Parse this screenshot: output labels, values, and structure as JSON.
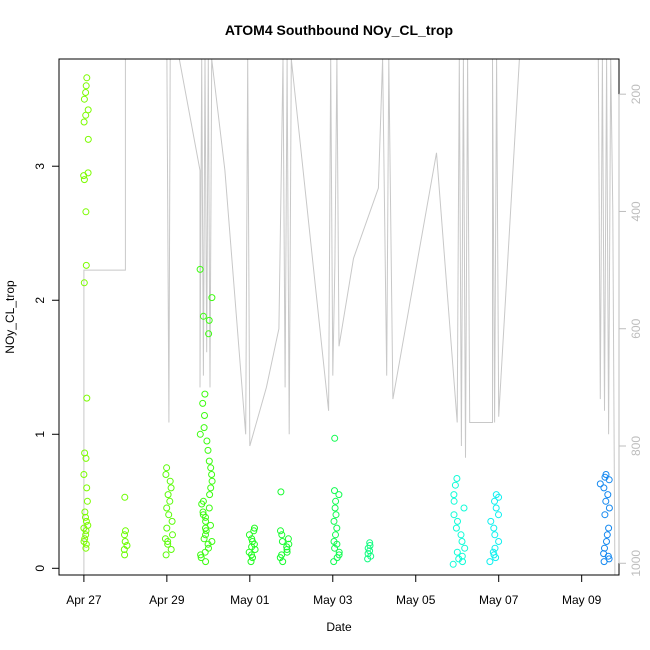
{
  "chart_data": {
    "type": "scatter",
    "title": "ATOM4 Southbound NOy_CL_trop",
    "xlabel": "Date",
    "ylabel": "NOy_CL_trop",
    "x_tick_labels": [
      "Apr 27",
      "Apr 29",
      "May 01",
      "May 03",
      "May 05",
      "May 07",
      "May 09"
    ],
    "x_tick_days": [
      0,
      2,
      4,
      6,
      8,
      10,
      12
    ],
    "xlim_days": [
      -0.6,
      12.9
    ],
    "y_ticks": [
      0,
      1,
      2,
      3
    ],
    "ylim": [
      -0.05,
      3.8
    ],
    "right_axis": {
      "ticks": [
        200,
        400,
        600,
        800,
        1000
      ],
      "ylim_reversed": [
        1020,
        140
      ],
      "color": "#bdbdbd"
    },
    "grid": false,
    "legend": "none",
    "marker": "open-circle",
    "point_groups": [
      {
        "day": 0.05,
        "spread": 0.06,
        "color": "#7cfc00",
        "values": [
          0.15,
          0.18,
          0.2,
          0.22,
          0.25,
          0.28,
          0.3,
          0.32,
          0.35,
          0.38,
          0.42,
          0.5,
          0.6,
          0.7,
          0.82,
          0.86,
          1.27,
          2.13,
          2.26,
          2.66,
          2.9,
          2.93,
          2.95,
          3.2,
          3.33,
          3.38,
          3.42,
          3.5,
          3.55,
          3.6,
          3.66
        ]
      },
      {
        "day": 1.0,
        "spread": 0.04,
        "color": "#6cfc00",
        "values": [
          0.1,
          0.14,
          0.17,
          0.2,
          0.25,
          0.28,
          0.53
        ]
      },
      {
        "day": 2.05,
        "spread": 0.1,
        "color": "#5cfc0a",
        "values": [
          0.1,
          0.14,
          0.18,
          0.2,
          0.22,
          0.25,
          0.3,
          0.35,
          0.4,
          0.45,
          0.5,
          0.55,
          0.6,
          0.65,
          0.7,
          0.75
        ]
      },
      {
        "day": 2.95,
        "spread": 0.15,
        "color": "#3cfc10",
        "values": [
          0.05,
          0.08,
          0.1,
          0.12,
          0.15,
          0.18,
          0.2,
          0.22,
          0.25,
          0.28,
          0.3,
          0.32,
          0.35,
          0.38,
          0.4,
          0.42,
          0.45,
          0.48,
          0.5,
          0.55,
          0.6,
          0.65,
          0.7,
          0.75,
          0.8,
          0.88,
          0.95,
          1.0,
          1.05,
          1.14,
          1.23,
          1.3,
          1.75,
          1.85,
          1.88,
          2.02,
          2.23
        ]
      },
      {
        "day": 4.05,
        "spread": 0.08,
        "color": "#20fc20",
        "values": [
          0.05,
          0.08,
          0.1,
          0.12,
          0.14,
          0.16,
          0.18,
          0.2,
          0.22,
          0.25,
          0.28,
          0.3
        ]
      },
      {
        "day": 4.85,
        "spread": 0.12,
        "color": "#18fc30",
        "values": [
          0.05,
          0.08,
          0.1,
          0.12,
          0.14,
          0.16,
          0.18,
          0.2,
          0.22,
          0.25,
          0.28,
          0.57
        ]
      },
      {
        "day": 6.1,
        "spread": 0.08,
        "color": "#10fc50",
        "values": [
          0.05,
          0.08,
          0.1,
          0.12,
          0.15,
          0.18,
          0.2,
          0.25,
          0.3,
          0.35,
          0.4,
          0.45,
          0.5,
          0.55,
          0.58,
          0.97
        ]
      },
      {
        "day": 6.9,
        "spread": 0.06,
        "color": "#10fc80",
        "values": [
          0.07,
          0.09,
          0.11,
          0.13,
          0.15,
          0.17,
          0.19
        ]
      },
      {
        "day": 9.05,
        "spread": 0.15,
        "color": "#10fcd8",
        "values": [
          0.03,
          0.05,
          0.07,
          0.09,
          0.12,
          0.15,
          0.2,
          0.25,
          0.3,
          0.35,
          0.4,
          0.45,
          0.5,
          0.55,
          0.62,
          0.67
        ]
      },
      {
        "day": 9.9,
        "spread": 0.12,
        "color": "#10f0f0",
        "values": [
          0.05,
          0.08,
          0.1,
          0.12,
          0.15,
          0.2,
          0.25,
          0.3,
          0.35,
          0.4,
          0.45,
          0.5,
          0.53,
          0.55
        ]
      },
      {
        "day": 12.55,
        "spread": 0.12,
        "color": "#1488f0",
        "values": [
          0.05,
          0.07,
          0.09,
          0.11,
          0.15,
          0.2,
          0.25,
          0.3,
          0.4,
          0.45,
          0.5,
          0.55,
          0.6,
          0.63,
          0.66,
          0.68,
          0.7
        ]
      }
    ],
    "altitude_trace": {
      "color": "#c8c8c8",
      "points": [
        [
          0.0,
          1020
        ],
        [
          0.0,
          500
        ],
        [
          1.0,
          500
        ],
        [
          1.0,
          140
        ],
        [
          2.0,
          140
        ],
        [
          2.05,
          760
        ],
        [
          2.08,
          140
        ],
        [
          2.3,
          140
        ],
        [
          2.8,
          330
        ],
        [
          2.8,
          700
        ],
        [
          2.84,
          140
        ],
        [
          2.88,
          680
        ],
        [
          2.92,
          140
        ],
        [
          2.96,
          640
        ],
        [
          3.0,
          140
        ],
        [
          3.04,
          700
        ],
        [
          3.08,
          140
        ],
        [
          3.4,
          330
        ],
        [
          3.9,
          780
        ],
        [
          3.95,
          140
        ],
        [
          4.0,
          800
        ],
        [
          4.4,
          700
        ],
        [
          4.7,
          600
        ],
        [
          4.8,
          140
        ],
        [
          4.85,
          700
        ],
        [
          4.9,
          140
        ],
        [
          4.95,
          780
        ],
        [
          5.0,
          140
        ],
        [
          5.9,
          740
        ],
        [
          5.95,
          140
        ],
        [
          6.0,
          680
        ],
        [
          6.05,
          490
        ],
        [
          6.1,
          140
        ],
        [
          6.15,
          630
        ],
        [
          6.5,
          480
        ],
        [
          7.1,
          360
        ],
        [
          7.2,
          140
        ],
        [
          7.3,
          680
        ],
        [
          7.35,
          140
        ],
        [
          7.45,
          720
        ],
        [
          8.5,
          300
        ],
        [
          9.0,
          760
        ],
        [
          9.05,
          140
        ],
        [
          9.1,
          800
        ],
        [
          9.15,
          140
        ],
        [
          9.2,
          820
        ],
        [
          9.25,
          140
        ],
        [
          9.3,
          760
        ],
        [
          9.85,
          760
        ],
        [
          9.85,
          140
        ],
        [
          9.9,
          760
        ],
        [
          9.95,
          140
        ],
        [
          10.0,
          750
        ],
        [
          10.5,
          140
        ],
        [
          12.4,
          140
        ],
        [
          12.45,
          720
        ],
        [
          12.5,
          140
        ],
        [
          12.55,
          740
        ],
        [
          12.6,
          140
        ],
        [
          12.65,
          780
        ],
        [
          12.7,
          140
        ],
        [
          12.75,
          400
        ],
        [
          12.8,
          1020
        ]
      ]
    }
  }
}
